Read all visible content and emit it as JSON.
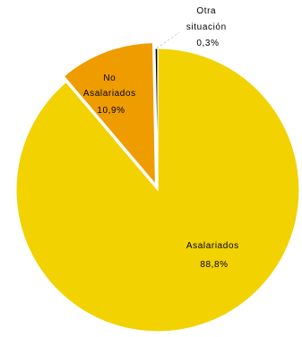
{
  "chart_data": {
    "type": "pie",
    "title": "",
    "slices": [
      {
        "name": "Asalariados",
        "label_lines": [
          "Asalariados",
          "88,8%"
        ],
        "value": 88.8,
        "color": "#F2D200"
      },
      {
        "name": "No Asalariados",
        "label_lines": [
          "No",
          "Asalariados",
          "10,9%"
        ],
        "value": 10.9,
        "color": "#EE9C00",
        "exploded": true
      },
      {
        "name": "Otra situación",
        "label_lines": [
          "Otra",
          "situación",
          "0,3%"
        ],
        "value": 0.3,
        "color": "#000000"
      }
    ],
    "legend": "none",
    "start": "top",
    "direction": "clockwise"
  }
}
